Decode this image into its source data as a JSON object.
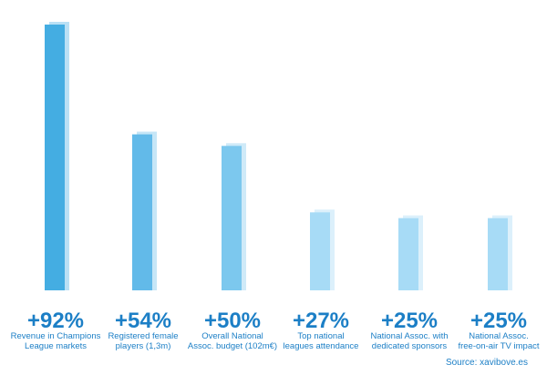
{
  "chart_data": {
    "type": "bar",
    "categories": [
      [
        "Revenue in Champions",
        "League markets"
      ],
      [
        "Registered female",
        "players (1,3m)"
      ],
      [
        "Overall National",
        "Assoc. budget (102m€)"
      ],
      [
        "Top national",
        "leagues attendance"
      ],
      [
        "National Assoc. with",
        "dedicated sponsors"
      ],
      [
        "National Assoc.",
        "free-on-air TV impact"
      ]
    ],
    "values": [
      92,
      54,
      50,
      27,
      25,
      25
    ],
    "value_labels": [
      "+92%",
      "+54%",
      "+50%",
      "+27%",
      "+25%",
      "+25%"
    ],
    "ylim": [
      0,
      100
    ],
    "grid": false,
    "legend": "none"
  },
  "colors": {
    "bars": [
      "#44ade2",
      "#62bae9",
      "#7cc8ee",
      "#a7dbf6",
      "#a7dbf6",
      "#a7dbf6"
    ],
    "shadow": [
      "#b9e0f5",
      "#c6e6f7",
      "#cfeaf8",
      "#dcf0fb",
      "#dcf0fb",
      "#dcf0fb"
    ],
    "text": "#1c7fc6"
  },
  "source": "Source: xavibove.es"
}
